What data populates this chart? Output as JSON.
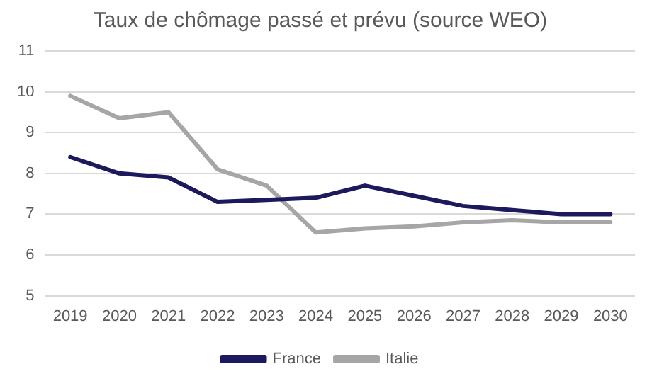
{
  "chart_data": {
    "type": "line",
    "title": "Taux de chômage passé et prévu (source WEO)",
    "categories": [
      "2019",
      "2020",
      "2021",
      "2022",
      "2023",
      "2024",
      "2025",
      "2026",
      "2027",
      "2028",
      "2029",
      "2030"
    ],
    "series": [
      {
        "name": "France",
        "color": "#1c1a5c",
        "values": [
          8.4,
          8.0,
          7.9,
          7.3,
          7.35,
          7.4,
          7.7,
          7.45,
          7.2,
          7.1,
          7.0,
          7.0
        ]
      },
      {
        "name": "Italie",
        "color": "#a6a6a6",
        "values": [
          9.9,
          9.35,
          9.5,
          8.1,
          7.7,
          6.55,
          6.65,
          6.7,
          6.8,
          6.85,
          6.8,
          6.8
        ]
      }
    ],
    "ylim": [
      5,
      11
    ],
    "yticks": [
      5,
      6,
      7,
      8,
      9,
      10,
      11
    ],
    "grid": "y",
    "legend": "bottom",
    "marker": "none",
    "line_style": "solid"
  }
}
